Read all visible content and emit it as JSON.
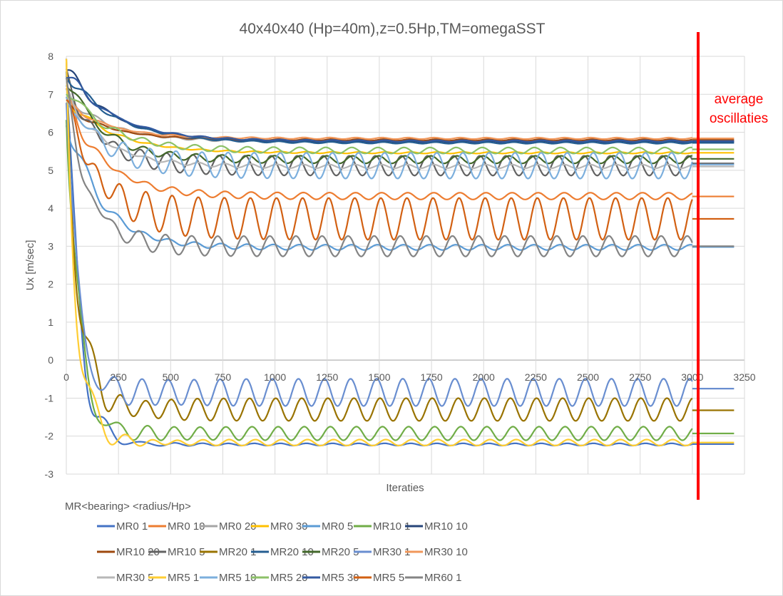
{
  "chart_data": {
    "type": "line",
    "title": "40x40x40 (Hp=40m),z=0.5Hp,TM=omegaSST",
    "xlabel": "Iteraties",
    "ylabel": "Ux [m/sec]",
    "xlim": [
      0,
      3250
    ],
    "ylim": [
      -3,
      8
    ],
    "xticks": [
      0,
      250,
      500,
      750,
      1000,
      1250,
      1500,
      1750,
      2000,
      2250,
      2500,
      2750,
      3000,
      3250
    ],
    "yticks": [
      -3,
      -2,
      -1,
      0,
      1,
      2,
      3,
      4,
      5,
      6,
      7,
      8
    ],
    "grid": true,
    "legend_title": "MR<bearing> <radius/Hp>",
    "legend_placement": "bottom",
    "annotation": {
      "lines": [
        "average",
        "oscillaties"
      ],
      "marker_x": 3000,
      "color": "#ff0000"
    },
    "series_model": "value(x) = mean + (start-mean)*exp(-x/tau) + amp*sin(2*pi*x/period+phase)*(1-exp(-x/200)); average plotted from 3000 to 3200",
    "series": [
      {
        "name": "MR0 1",
        "color": "#4472C4",
        "start": 7.6,
        "tau": 60,
        "mean": -2.22,
        "amp": 0.03,
        "period": 125,
        "phase": 0.3,
        "average": -2.21
      },
      {
        "name": "MR0 10",
        "color": "#ED7D31",
        "start": 6.9,
        "tau": 180,
        "mean": 4.32,
        "amp": 0.09,
        "period": 125,
        "phase": 1.0,
        "average": 4.31
      },
      {
        "name": "MR0 20",
        "color": "#A5A5A5",
        "start": 7.0,
        "tau": 200,
        "mean": 5.76,
        "amp": 0.03,
        "period": 125,
        "phase": 0.5,
        "average": 5.76
      },
      {
        "name": "MR0 30",
        "color": "#FFC000",
        "start": 6.9,
        "tau": 220,
        "mean": 5.46,
        "amp": 0.02,
        "period": 125,
        "phase": 0.2,
        "average": 5.46
      },
      {
        "name": "MR0 5",
        "color": "#5B9BD5",
        "start": 6.5,
        "tau": 160,
        "mean": 2.97,
        "amp": 0.07,
        "period": 125,
        "phase": 2.0,
        "average": 2.98
      },
      {
        "name": "MR10 1",
        "color": "#70AD47",
        "start": 7.4,
        "tau": 55,
        "mean": -1.93,
        "amp": 0.18,
        "period": 125,
        "phase": 0.8,
        "average": -1.93
      },
      {
        "name": "MR10 10",
        "color": "#264478",
        "start": 7.7,
        "tau": 220,
        "mean": 5.75,
        "amp": 0.02,
        "period": 125,
        "phase": 0.1,
        "average": 5.75
      },
      {
        "name": "MR10 20",
        "color": "#9E480E",
        "start": 6.7,
        "tau": 200,
        "mean": 5.8,
        "amp": 0.02,
        "period": 125,
        "phase": 0.4,
        "average": 5.8
      },
      {
        "name": "MR10 5",
        "color": "#636363",
        "start": 7.4,
        "tau": 150,
        "mean": 5.12,
        "amp": 0.26,
        "period": 125,
        "phase": 2.5,
        "average": 5.18
      },
      {
        "name": "MR20 1",
        "color": "#997300",
        "start": 7.5,
        "tau": 60,
        "mean": -1.3,
        "amp": 0.3,
        "period": 125,
        "phase": 1.4,
        "average": -1.32
      },
      {
        "name": "MR20 10",
        "color": "#255E91",
        "start": 7.6,
        "tau": 230,
        "mean": 5.72,
        "amp": 0.02,
        "period": 125,
        "phase": 0.6,
        "average": 5.72
      },
      {
        "name": "MR20 5",
        "color": "#43682B",
        "start": 7.5,
        "tau": 170,
        "mean": 5.28,
        "amp": 0.1,
        "period": 125,
        "phase": 1.7,
        "average": 5.3
      },
      {
        "name": "MR30 1",
        "color": "#698ED0",
        "start": 7.3,
        "tau": 50,
        "mean": -0.85,
        "amp": 0.36,
        "period": 125,
        "phase": 2.2,
        "average": -0.75
      },
      {
        "name": "MR30 10",
        "color": "#F1975A",
        "start": 6.8,
        "tau": 200,
        "mean": 5.84,
        "amp": 0.02,
        "period": 125,
        "phase": 0.9,
        "average": 5.84
      },
      {
        "name": "MR30 5",
        "color": "#B7B7B7",
        "start": 7.0,
        "tau": 180,
        "mean": 5.1,
        "amp": 0.05,
        "period": 125,
        "phase": 1.1,
        "average": 5.1
      },
      {
        "name": "MR5 1",
        "color": "#FFCD33",
        "start": 7.2,
        "tau": 55,
        "mean": -2.17,
        "amp": 0.08,
        "period": 125,
        "phase": 0.0,
        "average": -2.17
      },
      {
        "name": "MR5 10",
        "color": "#7CAFDD",
        "start": 7.0,
        "tau": 160,
        "mean": 5.12,
        "amp": 0.34,
        "period": 125,
        "phase": 0.3,
        "average": 5.15
      },
      {
        "name": "MR5 20",
        "color": "#8CC168",
        "start": 7.2,
        "tau": 200,
        "mean": 5.52,
        "amp": 0.08,
        "period": 125,
        "phase": 1.9,
        "average": 5.55
      },
      {
        "name": "MR5 30",
        "color": "#335AA1",
        "start": 7.6,
        "tau": 230,
        "mean": 5.77,
        "amp": 0.02,
        "period": 125,
        "phase": 0.2,
        "average": 5.77
      },
      {
        "name": "MR5 5",
        "color": "#D26012",
        "start": 6.8,
        "tau": 150,
        "mean": 3.72,
        "amp": 0.55,
        "period": 125,
        "phase": 1.2,
        "average": 3.72
      },
      {
        "name": "MR60 1",
        "color": "#848484",
        "start": 7.0,
        "tau": 110,
        "mean": 3.0,
        "amp": 0.27,
        "period": 125,
        "phase": 2.8,
        "average": 3.0
      }
    ]
  }
}
